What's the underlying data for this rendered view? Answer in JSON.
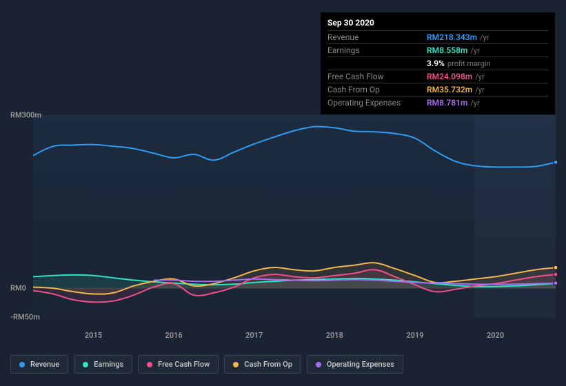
{
  "chart": {
    "type": "line",
    "background_color": "#1a2332",
    "plot_gradient_from": "rgba(30,50,75,0.6)",
    "plot_gradient_to": "rgba(25,40,60,0.3)",
    "highlight_band_color": "rgba(200,220,255,0.03)",
    "y_axis": {
      "min": -50,
      "max": 300,
      "ticks": [
        {
          "value": 300,
          "label": "RM300m"
        },
        {
          "value": 0,
          "label": "RM0"
        },
        {
          "value": -50,
          "label": "-RM50m"
        }
      ],
      "label_color": "#999",
      "label_fontsize": 11
    },
    "x_axis": {
      "min": 2014.25,
      "max": 2020.75,
      "ticks": [
        2015,
        2016,
        2017,
        2018,
        2019,
        2020
      ],
      "label_color": "#999",
      "label_fontsize": 11
    },
    "series": [
      {
        "id": "revenue",
        "label": "Revenue",
        "color": "#2f9df4",
        "fill_opacity": 0,
        "x": [
          2014.25,
          2014.5,
          2014.75,
          2015,
          2015.25,
          2015.5,
          2015.75,
          2016,
          2016.25,
          2016.5,
          2016.75,
          2017,
          2017.25,
          2017.5,
          2017.75,
          2018,
          2018.25,
          2018.5,
          2018.75,
          2019,
          2019.25,
          2019.5,
          2019.75,
          2020,
          2020.25,
          2020.5,
          2020.75
        ],
        "y": [
          230,
          246,
          248,
          249,
          246,
          242,
          234,
          226,
          232,
          222,
          236,
          250,
          262,
          273,
          280,
          278,
          272,
          271,
          268,
          260,
          238,
          220,
          212,
          210,
          210,
          211,
          218.343
        ]
      },
      {
        "id": "earnings",
        "label": "Earnings",
        "color": "#2ee3c2",
        "fill_opacity": 0.12,
        "x": [
          2014.25,
          2014.5,
          2014.75,
          2015,
          2015.25,
          2015.5,
          2015.75,
          2016,
          2016.25,
          2016.5,
          2016.75,
          2017,
          2017.25,
          2017.5,
          2017.75,
          2018,
          2018.25,
          2018.5,
          2018.75,
          2019,
          2019.25,
          2019.5,
          2019.75,
          2020,
          2020.25,
          2020.5,
          2020.75
        ],
        "y": [
          20,
          22,
          23,
          22,
          18,
          14,
          11,
          9,
          7,
          6,
          7,
          10,
          12,
          14,
          15,
          16,
          17,
          16,
          14,
          11,
          8,
          5,
          3,
          3,
          4,
          6,
          8.558
        ]
      },
      {
        "id": "fcf",
        "label": "Free Cash Flow",
        "color": "#f2508b",
        "fill_opacity": 0.1,
        "x": [
          2014.25,
          2014.5,
          2014.75,
          2015,
          2015.25,
          2015.5,
          2015.75,
          2016,
          2016.25,
          2016.5,
          2016.75,
          2017,
          2017.25,
          2017.5,
          2017.75,
          2018,
          2018.25,
          2018.5,
          2018.75,
          2019,
          2019.25,
          2019.5,
          2019.75,
          2020,
          2020.25,
          2020.5,
          2020.75
        ],
        "y": [
          -4,
          -10,
          -20,
          -24,
          -22,
          -12,
          2,
          8,
          -12,
          -8,
          2,
          18,
          24,
          20,
          18,
          22,
          26,
          32,
          20,
          6,
          -6,
          -2,
          4,
          8,
          14,
          20,
          24.098
        ]
      },
      {
        "id": "cfo",
        "label": "Cash From Op",
        "color": "#f2b84b",
        "fill_opacity": 0.1,
        "x": [
          2014.25,
          2014.5,
          2014.75,
          2015,
          2015.25,
          2015.5,
          2015.75,
          2016,
          2016.25,
          2016.5,
          2016.75,
          2017,
          2017.25,
          2017.5,
          2017.75,
          2018,
          2018.25,
          2018.5,
          2018.75,
          2019,
          2019.25,
          2019.5,
          2019.75,
          2020,
          2020.25,
          2020.5,
          2020.75
        ],
        "y": [
          2,
          0,
          -6,
          -10,
          -8,
          4,
          12,
          16,
          4,
          8,
          18,
          30,
          36,
          32,
          30,
          36,
          40,
          44,
          34,
          22,
          10,
          12,
          16,
          20,
          26,
          32,
          35.732
        ]
      },
      {
        "id": "opex",
        "label": "Operating Expenses",
        "color": "#a76ef2",
        "fill_opacity": 0,
        "x": [
          2015.75,
          2016,
          2016.25,
          2016.5,
          2016.75,
          2017,
          2017.25,
          2017.5,
          2017.75,
          2018,
          2018.25,
          2018.5,
          2018.75,
          2019,
          2019.25,
          2019.5,
          2019.75,
          2020,
          2020.25,
          2020.5,
          2020.75
        ],
        "y": [
          14,
          14,
          12,
          12,
          14,
          16,
          15,
          14,
          13,
          14,
          15,
          14,
          12,
          10,
          9,
          8,
          7,
          7,
          7,
          8,
          8.781
        ]
      }
    ],
    "line_width": 2,
    "end_marker_radius": 3
  },
  "tooltip": {
    "header": "Sep 30 2020",
    "rows": [
      {
        "label": "Revenue",
        "value": "RM218.343m",
        "unit": "/yr",
        "color": "#2f9df4"
      },
      {
        "label": "Earnings",
        "value": "RM8.558m",
        "unit": "/yr",
        "color": "#2ee3c2"
      },
      {
        "label": "",
        "value": "3.9%",
        "unit": "profit margin",
        "color": "#ffffff"
      },
      {
        "label": "Free Cash Flow",
        "value": "RM24.098m",
        "unit": "/yr",
        "color": "#f2508b"
      },
      {
        "label": "Cash From Op",
        "value": "RM35.732m",
        "unit": "/yr",
        "color": "#f2b84b"
      },
      {
        "label": "Operating Expenses",
        "value": "RM8.781m",
        "unit": "/yr",
        "color": "#a76ef2"
      }
    ]
  },
  "legend": {
    "items": [
      {
        "label": "Revenue",
        "color": "#2f9df4"
      },
      {
        "label": "Earnings",
        "color": "#2ee3c2"
      },
      {
        "label": "Free Cash Flow",
        "color": "#f2508b"
      },
      {
        "label": "Cash From Op",
        "color": "#f2b84b"
      },
      {
        "label": "Operating Expenses",
        "color": "#a76ef2"
      }
    ],
    "border_color": "#3a4555",
    "text_color": "#ccc",
    "fontsize": 11
  }
}
